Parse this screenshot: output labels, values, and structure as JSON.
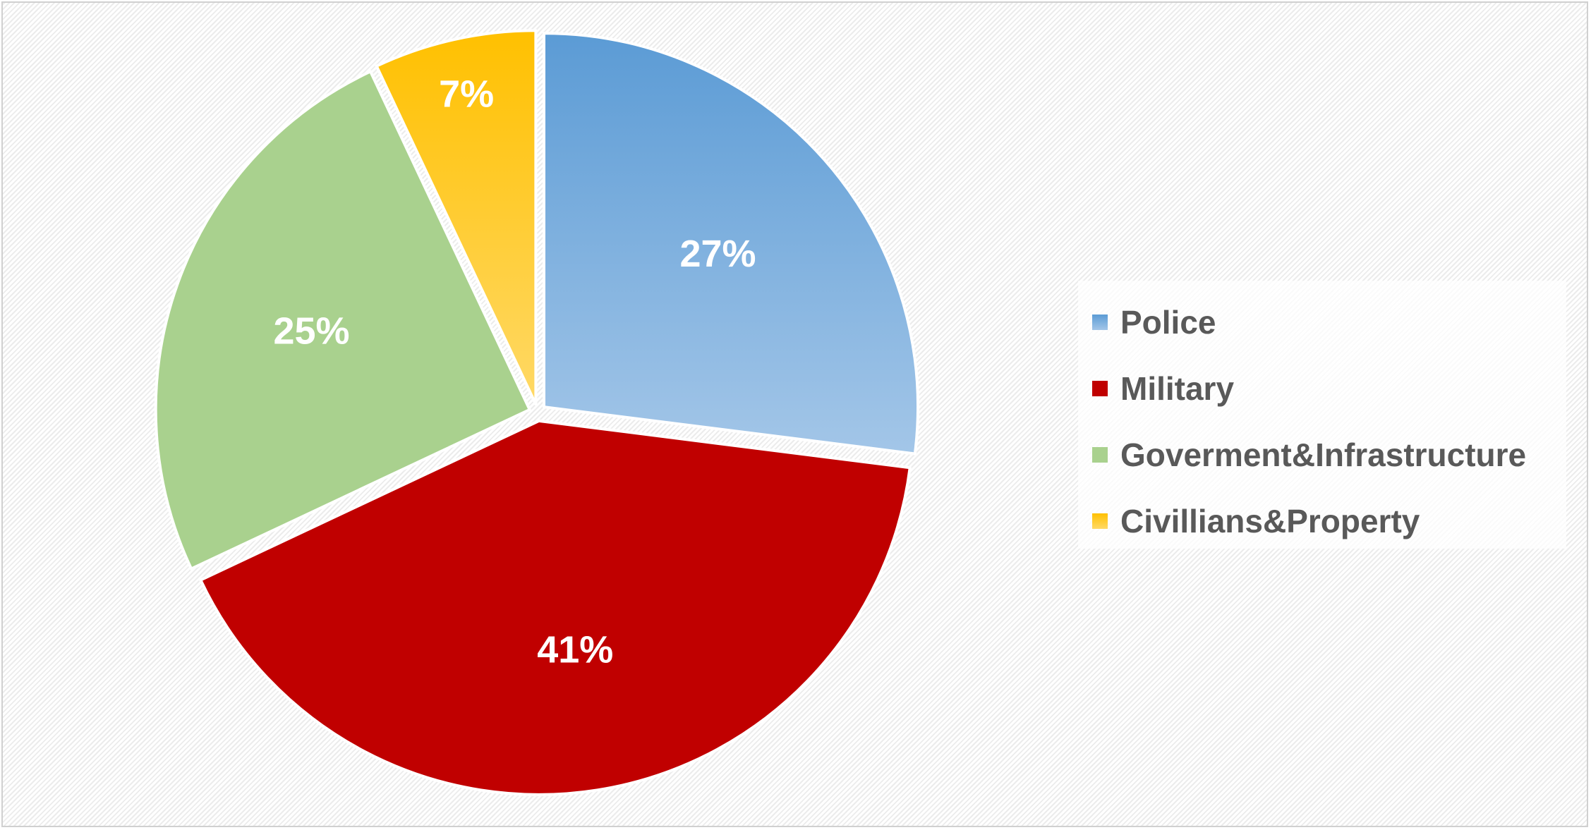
{
  "chart_data": {
    "type": "pie",
    "title": "",
    "legend_position": "right",
    "slices": [
      {
        "name": "Police",
        "value": 27,
        "label": "27%",
        "color": "#5b9bd5",
        "color_light": "#a3c6e8"
      },
      {
        "name": "Military",
        "value": 41,
        "label": "41%",
        "color": "#c00000",
        "color_light": "#c00000"
      },
      {
        "name": "Goverment&Infrastructure",
        "value": 25,
        "label": "25%",
        "color": "#a9d18e",
        "color_light": "#a9d18e"
      },
      {
        "name": "Civillians&Property",
        "value": 7,
        "label": "7%",
        "color": "#ffc000",
        "color_light": "#ffd966"
      }
    ]
  }
}
